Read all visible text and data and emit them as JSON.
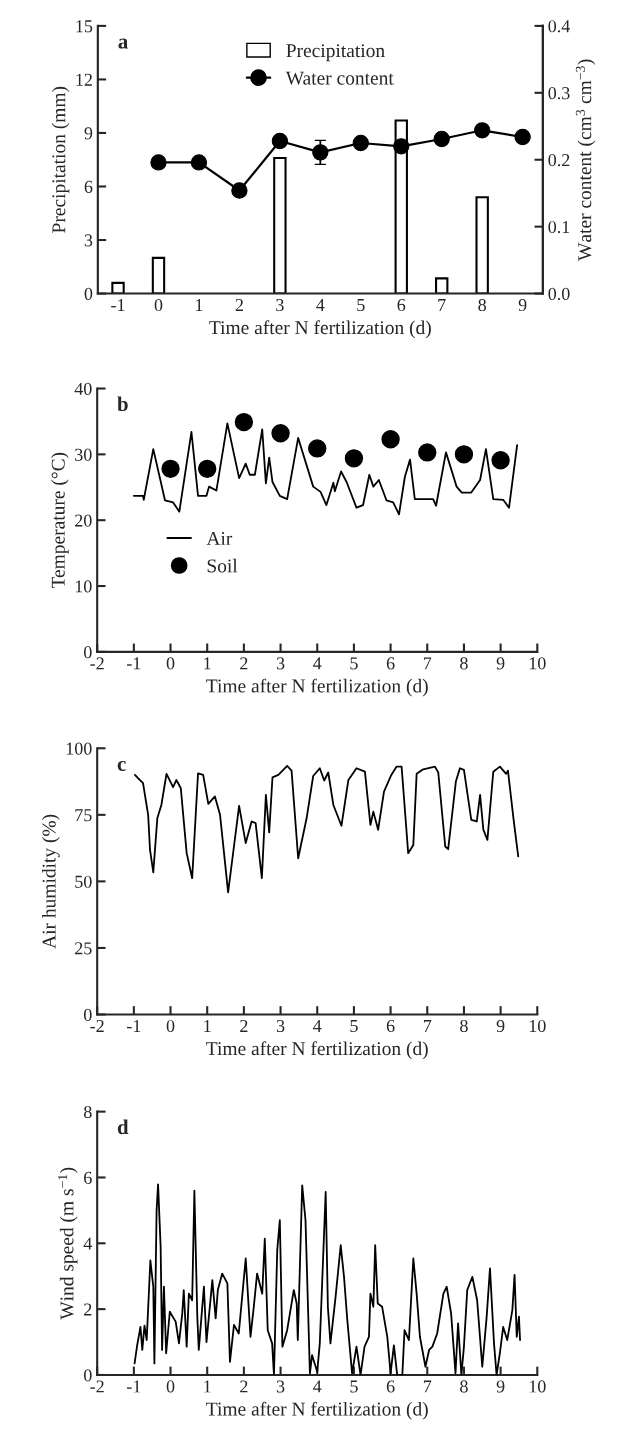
{
  "chart_data": [
    {
      "type": "bar",
      "categories": [
        "-1",
        "0",
        "1",
        "2",
        "3",
        "4",
        "5",
        "6",
        "7",
        "8",
        "9"
      ],
      "xlabel": "Time after N fertilization (d)",
      "ylabel": "Precipitation (mm)",
      "y2label": "Water content (cm$^{3}$ cm$^{−3}$)",
      "ylim": [
        0,
        15
      ],
      "yticks": [
        0,
        3,
        6,
        9,
        12,
        15
      ],
      "y2lim": [
        0,
        0.4
      ],
      "y2ticks": [
        {
          "value": 0,
          "label": "0.0"
        },
        0.1,
        0.2,
        0.3,
        0.4
      ],
      "legend": "top",
      "annotations": [
        "a"
      ],
      "series": [
        {
          "name": "Precipitation",
          "color": "#ffffff",
          "values": [
            0.6,
            2.0,
            null,
            null,
            7.6,
            null,
            null,
            9.7,
            0.85,
            5.4,
            null
          ]
        },
        {
          "name": "Water content",
          "type": "line",
          "axis": "y2",
          "color": "#000000",
          "marker": "circle",
          "values": [
            null,
            0.196,
            0.196,
            0.154,
            0.228,
            0.211,
            0.225,
            0.22,
            0.231,
            0.244,
            0.234
          ],
          "errors": [
            null,
            null,
            null,
            null,
            null,
            0.018,
            null,
            null,
            null,
            null,
            null
          ]
        }
      ]
    },
    {
      "type": "line",
      "xlabel": "Time after N fertilization (d)",
      "ylabel": "Temperature (°C)",
      "xlim": [
        -2,
        10
      ],
      "xticks": [
        -2,
        -1,
        0,
        1,
        2,
        3,
        4,
        5,
        6,
        7,
        8,
        9,
        10
      ],
      "ylim": [
        0,
        40
      ],
      "yticks": [
        0,
        10,
        20,
        30,
        40
      ],
      "legend": "bottom left",
      "annotations": [
        "b"
      ],
      "series": [
        {
          "name": "Air",
          "color": "#000000",
          "x": [
            -1.0,
            -0.75,
            -0.73,
            -0.47,
            -0.15,
            0.07,
            0.24,
            0.57,
            0.75,
            0.98,
            1.05,
            1.25,
            1.55,
            1.87,
            2.05,
            2.16,
            2.3,
            2.5,
            2.6,
            2.69,
            2.78,
            2.98,
            3.18,
            3.48,
            3.89,
            4.09,
            4.25,
            4.44,
            4.48,
            4.65,
            4.8,
            5.07,
            5.25,
            5.42,
            5.53,
            5.68,
            5.89,
            6.07,
            6.23,
            6.39,
            6.53,
            6.66,
            7.16,
            7.24,
            7.51,
            7.8,
            7.94,
            8.2,
            8.44,
            8.6,
            8.8,
            9.07,
            9.23,
            9.45
          ],
          "values": [
            23.7,
            23.7,
            23.1,
            30.8,
            23.0,
            22.7,
            21.3,
            33.4,
            23.7,
            23.7,
            25.1,
            24.5,
            34.7,
            26.4,
            28.6,
            26.9,
            26.9,
            33.8,
            25.6,
            29.5,
            25.8,
            23.7,
            23.2,
            32.5,
            25.1,
            24.3,
            22.3,
            25.7,
            24.4,
            27.4,
            25.8,
            21.9,
            22.3,
            26.9,
            25.1,
            26.1,
            23.0,
            22.7,
            20.9,
            26.6,
            29.2,
            23.2,
            23.2,
            22.2,
            30.3,
            25.1,
            24.2,
            24.2,
            26.1,
            30.8,
            23.2,
            23.1,
            21.9,
            31.4
          ]
        },
        {
          "name": "Soil",
          "type": "scatter",
          "color": "#000000",
          "marker": "circle",
          "x": [
            0,
            1,
            2,
            3,
            4,
            5,
            6,
            7,
            8,
            9
          ],
          "values": [
            27.8,
            27.8,
            34.9,
            33.2,
            30.9,
            29.4,
            32.3,
            30.3,
            30.0,
            29.1
          ]
        }
      ]
    },
    {
      "type": "line",
      "xlabel": "Time after N fertilization (d)",
      "ylabel": "Air humidity (%)",
      "xlim": [
        -2,
        10
      ],
      "xticks": [
        -2,
        -1,
        0,
        1,
        2,
        3,
        4,
        5,
        6,
        7,
        8,
        9,
        10
      ],
      "ylim": [
        0,
        100
      ],
      "yticks": [
        0,
        25,
        50,
        75,
        100
      ],
      "annotations": [
        "c"
      ],
      "series": [
        {
          "color": "#000000",
          "x": [
            -0.97,
            -0.88,
            -0.75,
            -0.61,
            -0.56,
            -0.47,
            -0.36,
            -0.25,
            -0.11,
            0.07,
            0.16,
            0.28,
            0.44,
            0.59,
            0.75,
            0.89,
            1.03,
            1.21,
            1.35,
            1.57,
            1.87,
            2.05,
            2.21,
            2.32,
            2.49,
            2.6,
            2.69,
            2.78,
            2.94,
            3.18,
            3.3,
            3.48,
            3.71,
            3.89,
            4.07,
            4.19,
            4.3,
            4.44,
            4.66,
            4.85,
            5.07,
            5.3,
            5.45,
            5.53,
            5.66,
            5.82,
            6.02,
            6.16,
            6.3,
            6.48,
            6.62,
            6.71,
            6.89,
            7.21,
            7.3,
            7.49,
            7.57,
            7.78,
            7.89,
            8.0,
            8.2,
            8.35,
            8.44,
            8.53,
            8.64,
            8.8,
            8.98,
            9.15,
            9.2,
            9.35,
            9.48
          ],
          "values": [
            90,
            88.7,
            86.9,
            75,
            61.9,
            53.4,
            73.7,
            78.7,
            90.4,
            85.4,
            88.1,
            85,
            60.6,
            51.2,
            90.6,
            90,
            79.1,
            81.9,
            75,
            45.9,
            78.4,
            64.4,
            72.5,
            71.9,
            51.2,
            82.5,
            68.4,
            89.1,
            90,
            93.4,
            91.6,
            58.7,
            73.7,
            89.6,
            92.5,
            87.9,
            90.9,
            78.7,
            70.9,
            88.1,
            92.5,
            91.2,
            71.2,
            76.2,
            69.4,
            83.7,
            90,
            93.1,
            93.1,
            60.6,
            63.7,
            90.4,
            92.1,
            93.1,
            90.9,
            63.1,
            62.1,
            87.5,
            92.5,
            91.9,
            73.1,
            72.5,
            82.5,
            69.4,
            65.6,
            91.2,
            93.1,
            90.4,
            91.6,
            73.7,
            59.4
          ]
        }
      ]
    },
    {
      "type": "line",
      "xlabel": "Time after N fertilization (d)",
      "ylabel": "Wind speed (m s$^{−1}$)",
      "xlim": [
        -2,
        10
      ],
      "xticks": [
        -2,
        -1,
        0,
        1,
        2,
        3,
        4,
        5,
        6,
        7,
        8,
        9,
        10
      ],
      "ylim": [
        0,
        8
      ],
      "yticks": [
        0,
        2,
        4,
        6,
        8
      ],
      "annotations": [
        "d"
      ],
      "series": [
        {
          "color": "#000000",
          "x": [
            -0.98,
            -0.91,
            -0.82,
            -0.77,
            -0.71,
            -0.65,
            -0.55,
            -0.47,
            -0.44,
            -0.38,
            -0.34,
            -0.27,
            -0.23,
            -0.18,
            -0.12,
            -0.02,
            0.14,
            0.23,
            0.32,
            0.36,
            0.44,
            0.5,
            0.59,
            0.65,
            0.73,
            0.77,
            0.91,
            0.98,
            1.14,
            1.23,
            1.29,
            1.41,
            1.55,
            1.62,
            1.73,
            1.86,
            2.05,
            2.18,
            2.27,
            2.36,
            2.5,
            2.57,
            2.65,
            2.77,
            2.82,
            2.91,
            2.98,
            3.05,
            3.18,
            3.36,
            3.44,
            3.47,
            3.59,
            3.68,
            3.8,
            3.86,
            4.0,
            4.07,
            4.23,
            4.29,
            4.36,
            4.5,
            4.64,
            4.73,
            4.82,
            4.95,
            5.07,
            5.18,
            5.29,
            5.41,
            5.45,
            5.53,
            5.58,
            5.65,
            5.77,
            5.91,
            6.0,
            6.09,
            6.18,
            6.32,
            6.38,
            6.5,
            6.62,
            6.71,
            6.8,
            6.95,
            7.05,
            7.14,
            7.27,
            7.44,
            7.53,
            7.65,
            7.77,
            7.84,
            7.93,
            8.0,
            8.09,
            8.23,
            8.36,
            8.5,
            8.62,
            8.71,
            8.82,
            8.89,
            8.98,
            9.07,
            9.18,
            9.32,
            9.38,
            9.44,
            9.5,
            9.53
          ],
          "values": [
            0.35,
            0.9,
            1.46,
            0.76,
            1.5,
            1.06,
            3.48,
            2.68,
            0.35,
            5.0,
            5.79,
            3.9,
            0.76,
            2.68,
            0.66,
            1.92,
            1.62,
            0.96,
            1.87,
            2.58,
            0.86,
            2.47,
            2.27,
            5.6,
            1.77,
            0.76,
            2.68,
            1.0,
            2.88,
            1.72,
            2.58,
            3.08,
            2.78,
            0.4,
            1.52,
            1.26,
            3.54,
            1.16,
            2.07,
            3.08,
            2.47,
            4.14,
            1.36,
            0.96,
            0,
            3.8,
            4.7,
            0.86,
            1.36,
            2.58,
            2.17,
            1.06,
            5.76,
            4.7,
            0.05,
            0.6,
            0.1,
            0.96,
            5.56,
            2.07,
            0.96,
            2.37,
            3.94,
            2.98,
            1.67,
            0.05,
            0.86,
            0,
            0.86,
            1.16,
            2.47,
            2.07,
            3.94,
            2.17,
            2.07,
            1.16,
            0.05,
            0.9,
            0,
            0,
            1.36,
            1.06,
            3.54,
            2.47,
            1.16,
            0.25,
            0.76,
            0.86,
            1.26,
            2.47,
            2.68,
            1.87,
            0.05,
            1.57,
            0,
            0.86,
            2.58,
            2.98,
            2.27,
            0.25,
            1.77,
            3.24,
            0.96,
            0,
            0.66,
            1.46,
            1.06,
            1.97,
            3.04,
            1.16,
            1.77,
            1.06
          ]
        }
      ]
    }
  ]
}
